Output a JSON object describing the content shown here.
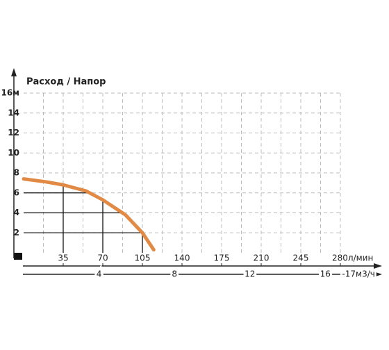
{
  "chart_data": {
    "type": "line",
    "y_label": "Расход / Напор",
    "x": [
      0,
      20,
      35,
      55,
      70,
      90,
      105,
      115
    ],
    "series": [
      {
        "color": "#e08a45",
        "values": [
          7.4,
          7.1,
          6.8,
          6.2,
          5.3,
          3.8,
          2.0,
          0.3
        ]
      }
    ],
    "xlim": [
      0,
      280
    ],
    "xticks": [
      35,
      70,
      105,
      140,
      175,
      210,
      245,
      {
        "value": 280,
        "label": "280л/мин"
      }
    ],
    "x_minor_grid": [
      17.5,
      52.5,
      87.5,
      122.5,
      157.5,
      192.5,
      227.5,
      262.5
    ],
    "x2lim": [
      0,
      16.8
    ],
    "x2ticks": [
      4,
      8,
      12,
      16,
      {
        "value": 17,
        "label": "-17м3/ч"
      }
    ],
    "ylim": [
      0,
      16
    ],
    "yticks": [
      2,
      4,
      6,
      8,
      10,
      12,
      14,
      {
        "value": 16,
        "label": "16м"
      }
    ],
    "grid": true,
    "reference_lines_x": [
      35,
      70,
      105
    ],
    "reference_lines_y": [
      2,
      4,
      6
    ]
  }
}
